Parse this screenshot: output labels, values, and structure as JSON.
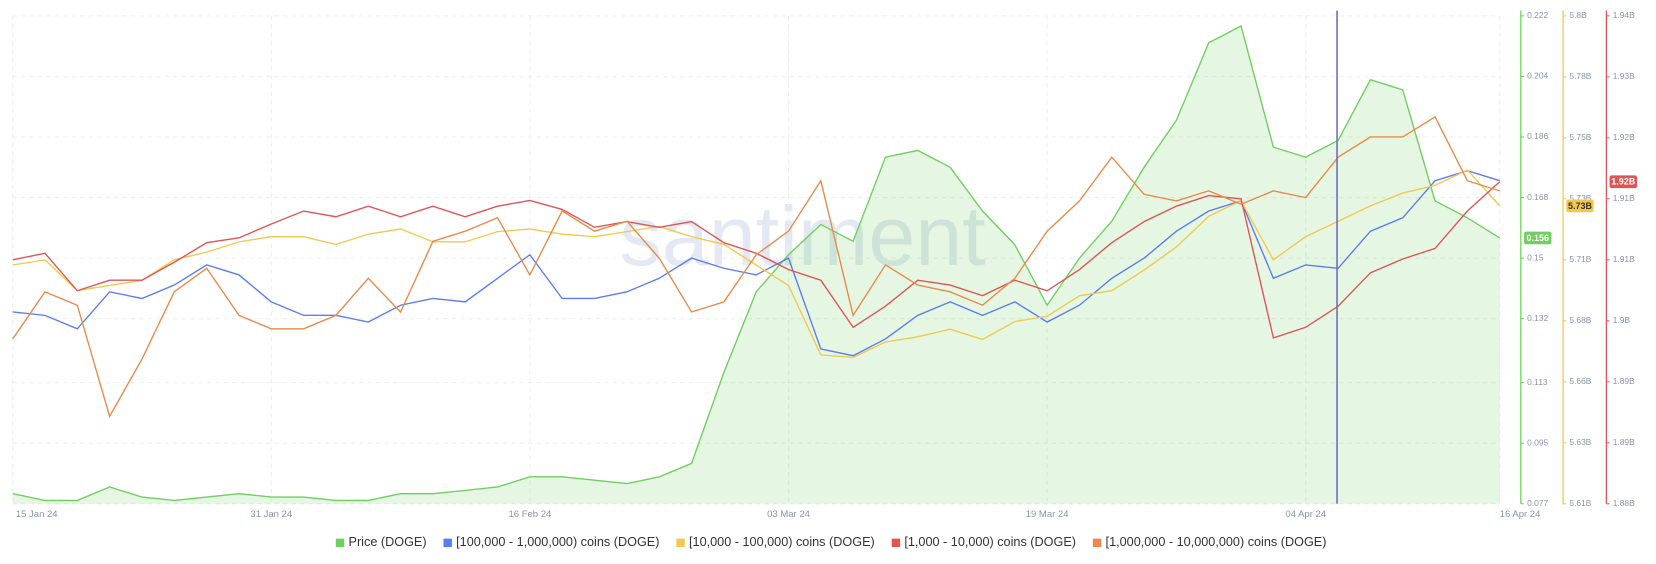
{
  "chart_data": {
    "type": "line",
    "watermark": "santiment",
    "grid": true,
    "categories": [
      "15 Jan 24",
      null,
      null,
      null,
      null,
      null,
      null,
      null,
      "31 Jan 24",
      null,
      null,
      null,
      null,
      null,
      null,
      null,
      "16 Feb 24",
      null,
      null,
      null,
      null,
      null,
      null,
      null,
      "03 Mar 24",
      null,
      null,
      null,
      null,
      null,
      null,
      null,
      "19 Mar 24",
      null,
      null,
      null,
      null,
      null,
      null,
      null,
      "04 Apr 24",
      null,
      null,
      null,
      null,
      null,
      "16 Apr 24"
    ],
    "ylim": [
      0.077,
      0.222
    ],
    "yticks": [
      0.077,
      0.095,
      0.113,
      0.132,
      0.15,
      0.168,
      0.186,
      0.204,
      0.222
    ],
    "y2lim": [
      5610000000,
      5800000000
    ],
    "y2ticks": [
      {
        "value": 5610000000,
        "label": "5.61B"
      },
      {
        "value": 5633750000,
        "label": "5.63B"
      },
      {
        "value": 5657500000,
        "label": "5.66B"
      },
      {
        "value": 5681250000,
        "label": "5.68B"
      },
      {
        "value": 5705000000,
        "label": "5.71B"
      },
      {
        "value": 5728750000,
        "label": "5.73B"
      },
      {
        "value": 5752500000,
        "label": "5.75B"
      },
      {
        "value": 5776250000,
        "label": "5.78B"
      },
      {
        "value": 5800000000,
        "label": "5.8B"
      }
    ],
    "y3lim": [
      1880000000,
      1940000000
    ],
    "y3ticks": [
      {
        "value": 1880000000,
        "label": "1.88B"
      },
      {
        "value": 1887500000,
        "label": "1.89B"
      },
      {
        "value": 1895000000,
        "label": "1.89B"
      },
      {
        "value": 1902500000,
        "label": "1.9B"
      },
      {
        "value": 1910000000,
        "label": "1.91B"
      },
      {
        "value": 1917500000,
        "label": "1.91B"
      },
      {
        "value": 1925000000,
        "label": "1.92B"
      },
      {
        "value": 1932500000,
        "label": "1.93B"
      },
      {
        "value": 1940000000,
        "label": "1.94B"
      }
    ],
    "series": [
      {
        "name": "Price (DOGE)",
        "color": "#6fcf5f",
        "area": true,
        "axis": "y",
        "values": [
          0.08,
          0.078,
          0.078,
          0.082,
          0.079,
          0.078,
          0.079,
          0.08,
          0.079,
          0.079,
          0.078,
          0.078,
          0.08,
          0.08,
          0.081,
          0.082,
          0.085,
          0.085,
          0.084,
          0.083,
          0.085,
          0.089,
          0.116,
          0.14,
          0.151,
          0.16,
          0.155,
          0.18,
          0.182,
          0.177,
          0.164,
          0.154,
          0.136,
          0.15,
          0.161,
          0.177,
          0.191,
          0.214,
          0.219,
          0.183,
          0.18,
          0.185,
          0.203,
          0.2,
          0.167,
          0.162,
          0.156
        ]
      },
      {
        "name": "[100,000  - 1,000,000) coins (DOGE)",
        "color": "#5b7cf5",
        "axis": "y",
        "values": [
          0.134,
          0.133,
          0.129,
          0.14,
          0.138,
          0.142,
          0.148,
          0.145,
          0.137,
          0.133,
          0.133,
          0.131,
          0.136,
          0.138,
          0.137,
          0.144,
          0.151,
          0.138,
          0.138,
          0.14,
          0.144,
          0.15,
          0.147,
          0.145,
          0.15,
          0.123,
          0.121,
          0.126,
          0.133,
          0.137,
          0.133,
          0.137,
          0.131,
          0.136,
          0.144,
          0.15,
          0.158,
          0.164,
          0.167,
          0.144,
          0.148,
          0.147,
          0.158,
          0.162,
          0.173,
          0.176,
          0.173
        ]
      },
      {
        "name": "[10,000 - 100,000) coins (DOGE)",
        "color": "#f2c94c",
        "axis": "y2",
        "last_label": "5.73B",
        "values": [
          5703000000,
          5705000000,
          5693000000,
          5695000000,
          5697000000,
          5705000000,
          5708000000,
          5712000000,
          5714000000,
          5714000000,
          5711000000,
          5715000000,
          5717000000,
          5712000000,
          5712000000,
          5716000000,
          5717000000,
          5715000000,
          5714000000,
          5716000000,
          5718000000,
          5714000000,
          5711000000,
          5703000000,
          5695000000,
          5668000000,
          5667000000,
          5673000000,
          5675000000,
          5678000000,
          5674000000,
          5681000000,
          5683000000,
          5691000000,
          5693000000,
          5701000000,
          5710000000,
          5722000000,
          5728000000,
          5705000000,
          5714000000,
          5720000000,
          5726000000,
          5731000000,
          5734000000,
          5740000000,
          5726000000
        ]
      },
      {
        "name": "[1,000 - 10,000) coins (DOGE)",
        "color": "#e05454",
        "axis": "y3",
        "last_label": "1.92B",
        "values": [
          1910000000,
          1910800000,
          1906200000,
          1907500000,
          1907500000,
          1909700000,
          1912100000,
          1912700000,
          1914400000,
          1916000000,
          1915300000,
          1916600000,
          1915300000,
          1916600000,
          1915300000,
          1916600000,
          1917300000,
          1916200000,
          1914000000,
          1914700000,
          1914000000,
          1914700000,
          1912100000,
          1910800000,
          1908800000,
          1907500000,
          1901700000,
          1904300000,
          1907500000,
          1906900000,
          1905600000,
          1907500000,
          1906200000,
          1908800000,
          1912100000,
          1914700000,
          1916600000,
          1917900000,
          1917500000,
          1900400000,
          1901700000,
          1904300000,
          1908400000,
          1910100000,
          1911400000,
          1916000000,
          1919600000
        ]
      },
      {
        "name": "[1,000,000 - 10,000,000) coins (DOGE)",
        "color": "#e98a4a",
        "axis": "y",
        "values": [
          0.126,
          0.14,
          0.136,
          0.103,
          0.12,
          0.14,
          0.147,
          0.133,
          0.129,
          0.129,
          0.133,
          0.144,
          0.134,
          0.155,
          0.158,
          0.162,
          0.145,
          0.164,
          0.158,
          0.161,
          0.15,
          0.134,
          0.137,
          0.151,
          0.158,
          0.173,
          0.133,
          0.148,
          0.142,
          0.14,
          0.136,
          0.144,
          0.158,
          0.167,
          0.18,
          0.169,
          0.167,
          0.17,
          0.166,
          0.17,
          0.168,
          0.18,
          0.186,
          0.186,
          0.192,
          0.173,
          0.17
        ]
      }
    ]
  }
}
